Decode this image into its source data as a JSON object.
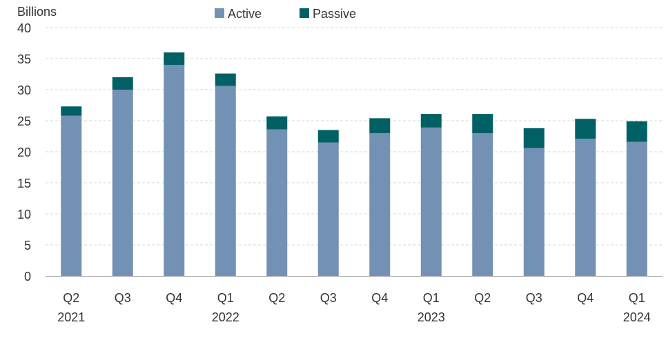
{
  "chart_data": {
    "type": "bar",
    "stacked": true,
    "ylabel": "Billions",
    "ylim": [
      0,
      40
    ],
    "yticks": [
      0,
      5,
      10,
      15,
      20,
      25,
      30,
      35,
      40
    ],
    "grid": true,
    "legend_position": "top-center",
    "categories": [
      "Q2 2021",
      "Q3",
      "Q4",
      "Q1 2022",
      "Q2",
      "Q3",
      "Q4",
      "Q1 2023",
      "Q2",
      "Q3",
      "Q4",
      "Q1 2024"
    ],
    "tick_labels": [
      {
        "quarter": "Q2",
        "year": "2021"
      },
      {
        "quarter": "Q3",
        "year": ""
      },
      {
        "quarter": "Q4",
        "year": ""
      },
      {
        "quarter": "Q1",
        "year": "2022"
      },
      {
        "quarter": "Q2",
        "year": ""
      },
      {
        "quarter": "Q3",
        "year": ""
      },
      {
        "quarter": "Q4",
        "year": ""
      },
      {
        "quarter": "Q1",
        "year": "2023"
      },
      {
        "quarter": "Q2",
        "year": ""
      },
      {
        "quarter": "Q3",
        "year": ""
      },
      {
        "quarter": "Q4",
        "year": ""
      },
      {
        "quarter": "Q1",
        "year": "2024"
      }
    ],
    "series": [
      {
        "name": "Active",
        "color": "#7391b4",
        "values": [
          25.8,
          30.0,
          34.0,
          30.6,
          23.6,
          21.5,
          23.0,
          23.9,
          23.0,
          20.6,
          22.1,
          21.6
        ]
      },
      {
        "name": "Passive",
        "color": "#006063",
        "values": [
          1.5,
          2.0,
          2.0,
          2.0,
          2.1,
          2.0,
          2.4,
          2.2,
          3.1,
          3.2,
          3.2,
          3.3
        ]
      }
    ]
  }
}
